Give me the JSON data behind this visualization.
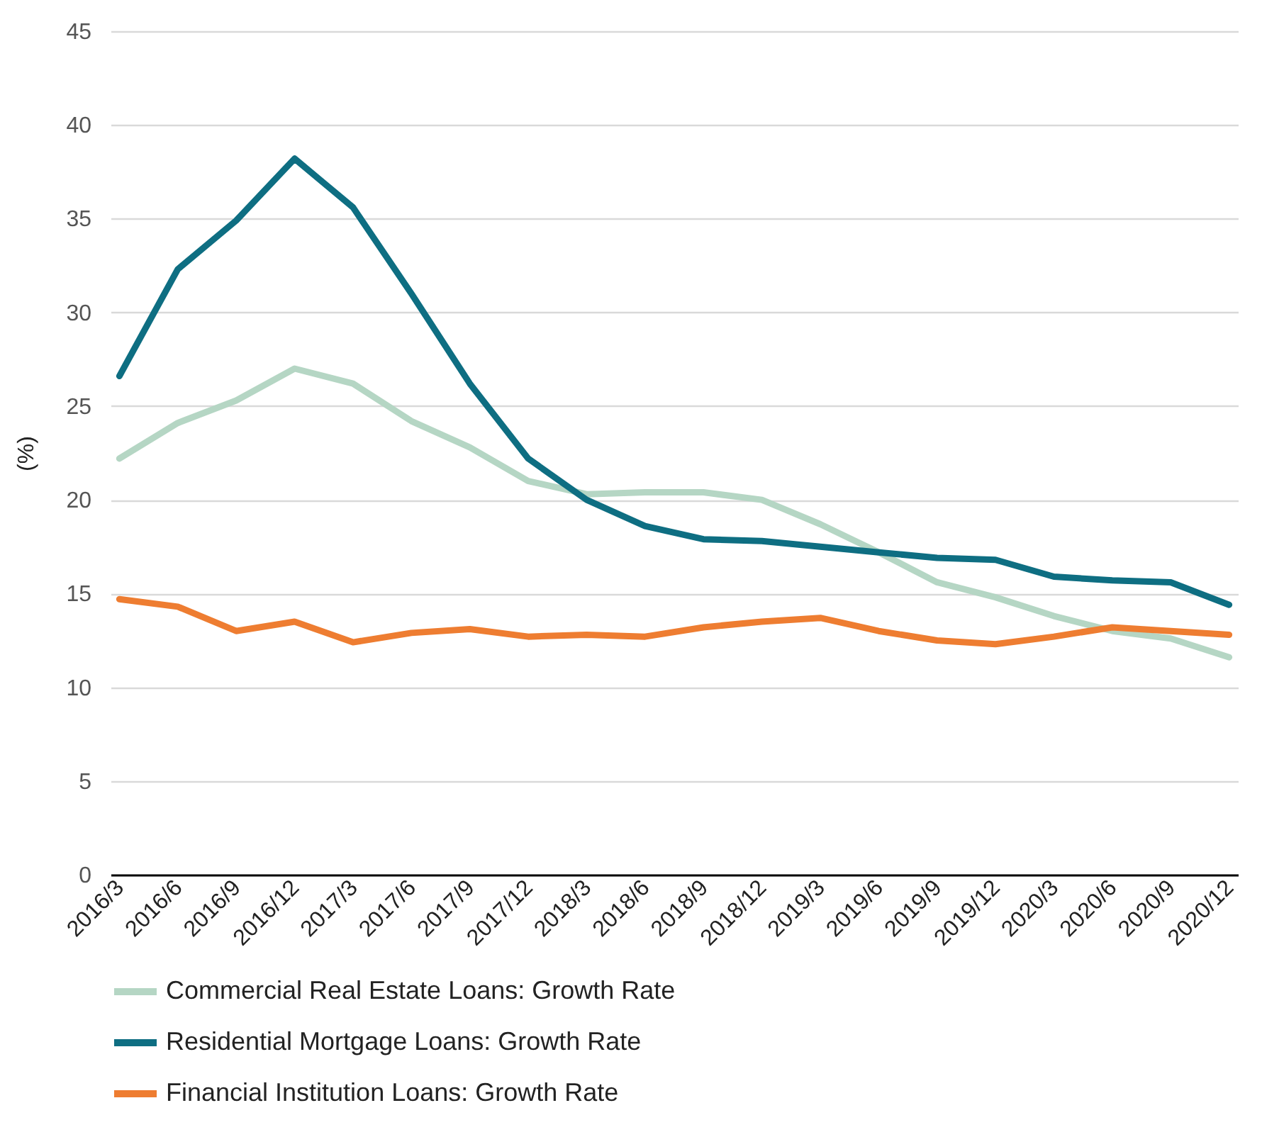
{
  "chart_data": {
    "type": "line",
    "ylabel": "(%)",
    "categories": [
      "2016/3",
      "2016/6",
      "2016/9",
      "2016/12",
      "2017/3",
      "2017/6",
      "2017/9",
      "2017/12",
      "2018/3",
      "2018/6",
      "2018/9",
      "2018/12",
      "2019/3",
      "2019/6",
      "2019/9",
      "2019/12",
      "2020/3",
      "2020/6",
      "2020/9",
      "2020/12"
    ],
    "series": [
      {
        "name": "Commercial Real Estate Loans: Growth Rate",
        "color": "#b5d6c4",
        "values": [
          22.2,
          24.1,
          25.3,
          27.0,
          26.2,
          24.2,
          22.8,
          21.0,
          20.3,
          20.4,
          20.4,
          20.0,
          18.7,
          17.2,
          15.6,
          14.8,
          13.8,
          13.0,
          12.6,
          11.6
        ]
      },
      {
        "name": "Residential Mortgage Loans: Growth Rate",
        "color": "#0e6e82",
        "values": [
          26.6,
          32.3,
          34.9,
          38.2,
          35.6,
          31.0,
          26.2,
          22.2,
          20.0,
          18.6,
          17.9,
          17.8,
          17.5,
          17.2,
          16.9,
          16.8,
          15.9,
          15.7,
          15.6,
          14.4
        ]
      },
      {
        "name": "Financial Institution Loans: Growth Rate",
        "color": "#ee7d31",
        "values": [
          14.7,
          14.3,
          13.0,
          13.5,
          12.4,
          12.9,
          13.1,
          12.7,
          12.8,
          12.7,
          13.2,
          13.5,
          13.7,
          13.0,
          12.5,
          12.3,
          12.7,
          13.2,
          13.0,
          12.8
        ]
      }
    ],
    "ylim": [
      0,
      45
    ],
    "yticks": [
      0,
      5,
      10,
      15,
      20,
      25,
      30,
      35,
      40,
      45
    ],
    "grid": "y",
    "legend": "bottom",
    "line_style": "solid"
  }
}
